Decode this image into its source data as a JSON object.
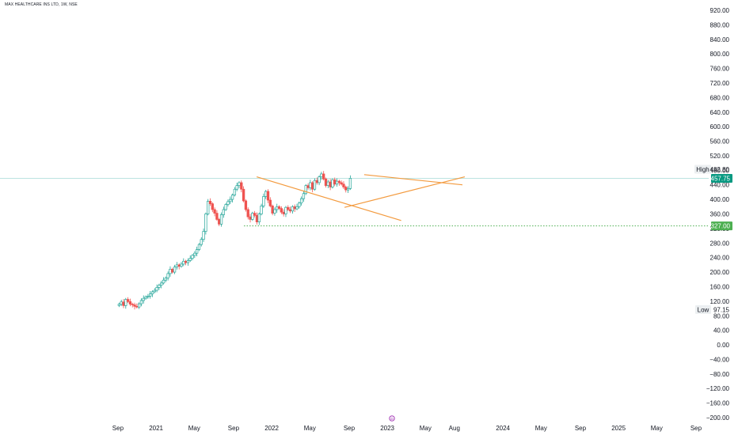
{
  "title": "MAX HEALTHCARE INS LTD, 1W, NSE",
  "chart_data": {
    "type": "candlestick",
    "ylim": [
      -200,
      920
    ],
    "y_ticks": [
      "920.00",
      "880.00",
      "840.00",
      "800.00",
      "760.00",
      "720.00",
      "680.00",
      "640.00",
      "600.00",
      "560.00",
      "520.00",
      "480.00",
      "440.00",
      "400.00",
      "360.00",
      "320.00",
      "280.00",
      "240.00",
      "200.00",
      "160.00",
      "120.00",
      "80.00",
      "40.00",
      "0.00",
      "−40.00",
      "−80.00",
      "−120.00",
      "−160.00",
      "−200.00"
    ],
    "x_ticks": [
      {
        "label": "Sep",
        "x": 2020.67
      },
      {
        "label": "2021",
        "x": 2021.0
      },
      {
        "label": "May",
        "x": 2021.33
      },
      {
        "label": "Sep",
        "x": 2021.67
      },
      {
        "label": "2022",
        "x": 2022.0
      },
      {
        "label": "May",
        "x": 2022.33
      },
      {
        "label": "Sep",
        "x": 2022.67
      },
      {
        "label": "2023",
        "x": 2023.0
      },
      {
        "label": "May",
        "x": 2023.33
      },
      {
        "label": "Aug",
        "x": 2023.58
      },
      {
        "label": "2024",
        "x": 2024.0
      },
      {
        "label": "May",
        "x": 2024.33
      },
      {
        "label": "Sep",
        "x": 2024.67
      },
      {
        "label": "2025",
        "x": 2025.0
      },
      {
        "label": "May",
        "x": 2025.33
      },
      {
        "label": "Sep",
        "x": 2025.67
      }
    ],
    "x_range": [
      2019.65,
      2025.78
    ],
    "last_price": "457.75",
    "high": {
      "label": "High",
      "value": "482.80"
    },
    "low": {
      "label": "Low",
      "value": "97.15"
    },
    "support_level": "327.00",
    "support_value": 327,
    "closes": [
      112,
      118,
      108,
      125,
      119,
      112,
      110,
      106,
      104,
      113,
      122,
      128,
      132,
      134,
      140,
      146,
      150,
      158,
      164,
      170,
      178,
      184,
      196,
      208,
      200,
      214,
      220,
      216,
      222,
      230,
      226,
      232,
      238,
      246,
      252,
      262,
      276,
      290,
      312,
      360,
      395,
      388,
      372,
      362,
      345,
      332,
      358,
      372,
      386,
      394,
      400,
      412,
      428,
      438,
      446,
      428,
      396,
      372,
      352,
      345,
      362,
      356,
      338,
      360,
      382,
      408,
      422,
      398,
      382,
      362,
      372,
      380,
      375,
      365,
      360,
      378,
      372,
      368,
      380,
      374,
      380,
      390,
      402,
      416,
      438,
      432,
      446,
      428,
      452,
      446,
      462,
      470,
      456,
      438,
      448,
      434,
      454,
      442,
      450,
      446,
      442,
      434,
      426,
      430,
      458
    ],
    "trendlines": [
      {
        "x1": 2021.87,
        "y1": 462,
        "x2": 2023.12,
        "y2": 342
      },
      {
        "x1": 2022.63,
        "y1": 378,
        "x2": 2023.67,
        "y2": 462
      },
      {
        "x1": 2022.8,
        "y1": 468,
        "x2": 2023.65,
        "y2": 440
      }
    ],
    "trendline_color": "#f39a3e",
    "up_color": "#26a69a",
    "down_color": "#ef5350",
    "support_color": "#4caf50",
    "price_line_color": "#b2dfdb"
  },
  "marker_icon": "dividend-marker-icon",
  "marker_label": "D"
}
